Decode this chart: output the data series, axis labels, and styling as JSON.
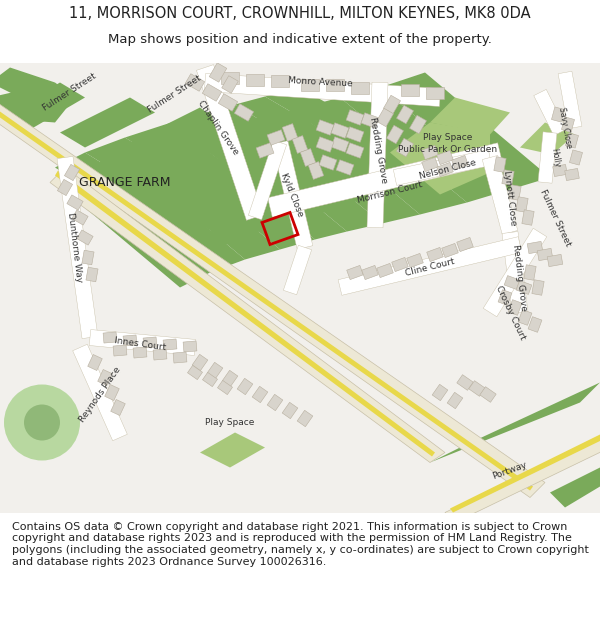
{
  "title_line1": "11, MORRISON COURT, CROWNHILL, MILTON KEYNES, MK8 0DA",
  "title_line2": "Map shows position and indicative extent of the property.",
  "footer_text": "Contains OS data © Crown copyright and database right 2021. This information is subject to Crown copyright and database rights 2023 and is reproduced with the permission of HM Land Registry. The polygons (including the associated geometry, namely x, y co-ordinates) are subject to Crown copyright and database rights 2023 Ordnance Survey 100026316.",
  "title_fontsize": 10.5,
  "subtitle_fontsize": 9.5,
  "footer_fontsize": 8.0,
  "bg_color": "#ffffff",
  "map_bg": "#f2f0ec",
  "road_cream": "#ede8d5",
  "road_yellow": "#e8d84a",
  "road_white": "#ffffff",
  "road_outline": "#c8c0a8",
  "green_dark": "#7aaa5a",
  "green_mid": "#8db870",
  "green_light": "#a8c87a",
  "building_color": "#d8d4cc",
  "building_outline": "#b8b0a0",
  "plot_outline": "#cc0000",
  "text_color": "#222222",
  "label_color": "#333333",
  "label_fs": 6.5
}
